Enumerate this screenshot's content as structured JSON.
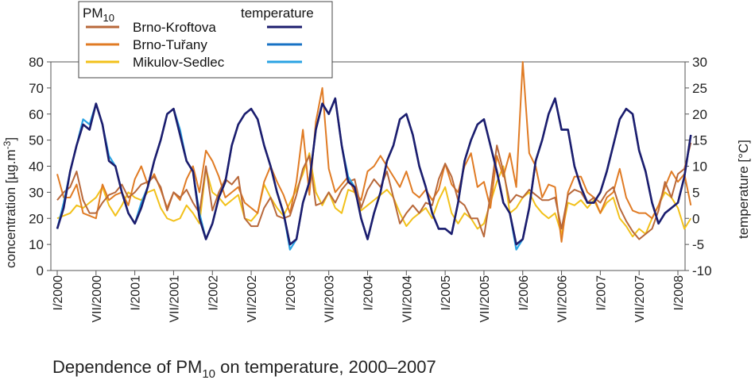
{
  "chart_data": {
    "type": "line",
    "title": "Dependence of PM10 on temperature, 2000–2007",
    "title_main": "Dependence of PM",
    "title_sub": "10",
    "title_rest": " on temperature, 2000–2007",
    "ylabel_left": "concentration [µg.m-3]",
    "ylabel_left_main": "concentration [µg.m",
    "ylabel_left_sup": "-3",
    "ylabel_left_end": "]",
    "ylabel_right": "temperature [°C]",
    "ylim_left": [
      0,
      80
    ],
    "ylim_right": [
      -10,
      30
    ],
    "yticks_left": [
      "0",
      "10",
      "20",
      "30",
      "40",
      "50",
      "60",
      "70",
      "80"
    ],
    "yticks_right": [
      "-10",
      "-5",
      "0",
      "5",
      "10",
      "15",
      "20",
      "25",
      "30"
    ],
    "xticks": [
      "I/2000",
      "VII/2000",
      "I/2001",
      "VII/2001",
      "I/2002",
      "VII/2002",
      "I/2003",
      "VII/2003",
      "I/2004",
      "VII/2004",
      "I/2005",
      "VII/2005",
      "I/2006",
      "VII/2006",
      "I/2007",
      "VII/2007",
      "I/2008"
    ],
    "legend": {
      "pm_header_main": "PM",
      "pm_header_sub": "10",
      "temp_header": "temperature",
      "stations": [
        "Brno-Kroftova",
        "Brno-Tuřany",
        "Mikulov-Sedlec"
      ]
    },
    "x": [
      "2000-01",
      "2000-02",
      "2000-03",
      "2000-04",
      "2000-05",
      "2000-06",
      "2000-07",
      "2000-08",
      "2000-09",
      "2000-10",
      "2000-11",
      "2000-12",
      "2001-01",
      "2001-02",
      "2001-03",
      "2001-04",
      "2001-05",
      "2001-06",
      "2001-07",
      "2001-08",
      "2001-09",
      "2001-10",
      "2001-11",
      "2001-12",
      "2002-01",
      "2002-02",
      "2002-03",
      "2002-04",
      "2002-05",
      "2002-06",
      "2002-07",
      "2002-08",
      "2002-09",
      "2002-10",
      "2002-11",
      "2002-12",
      "2003-01",
      "2003-02",
      "2003-03",
      "2003-04",
      "2003-05",
      "2003-06",
      "2003-07",
      "2003-08",
      "2003-09",
      "2003-10",
      "2003-11",
      "2003-12",
      "2004-01",
      "2004-02",
      "2004-03",
      "2004-04",
      "2004-05",
      "2004-06",
      "2004-07",
      "2004-08",
      "2004-09",
      "2004-10",
      "2004-11",
      "2004-12",
      "2005-01",
      "2005-02",
      "2005-03",
      "2005-04",
      "2005-05",
      "2005-06",
      "2005-07",
      "2005-08",
      "2005-09",
      "2005-10",
      "2005-11",
      "2005-12",
      "2006-01",
      "2006-02",
      "2006-03",
      "2006-04",
      "2006-05",
      "2006-06",
      "2006-07",
      "2006-08",
      "2006-09",
      "2006-10",
      "2006-11",
      "2006-12",
      "2007-01",
      "2007-02",
      "2007-03",
      "2007-04",
      "2007-05",
      "2007-06",
      "2007-07",
      "2007-08",
      "2007-09",
      "2007-10",
      "2007-11",
      "2007-12",
      "2008-01",
      "2008-02",
      "2008-03"
    ],
    "series": [
      {
        "name": "Brno-Kroftova",
        "kind": "pm10",
        "axis": "left",
        "color": "#b8683a",
        "values": [
          27,
          30,
          32,
          38,
          27,
          22,
          22,
          26,
          29,
          30,
          33,
          28,
          30,
          33,
          34,
          36,
          32,
          23,
          30,
          28,
          31,
          26,
          22,
          40,
          23,
          30,
          35,
          33,
          36,
          20,
          17,
          17,
          24,
          28,
          21,
          20,
          21,
          29,
          39,
          44,
          25,
          26,
          30,
          26,
          31,
          34,
          35,
          24,
          31,
          35,
          32,
          38,
          28,
          18,
          22,
          25,
          22,
          26,
          25,
          35,
          41,
          36,
          27,
          25,
          20,
          20,
          13,
          29,
          48,
          38,
          26,
          29,
          28,
          31,
          29,
          27,
          27,
          28,
          16,
          29,
          31,
          30,
          26,
          28,
          26,
          30,
          32,
          24,
          19,
          15,
          12,
          14,
          16,
          23,
          34,
          28,
          37,
          39,
          49
        ]
      },
      {
        "name": "Brno-Tuřany",
        "kind": "pm10",
        "axis": "left",
        "color": "#e07b24",
        "values": [
          37,
          28,
          28,
          33,
          22,
          21,
          20,
          33,
          27,
          29,
          30,
          25,
          35,
          40,
          33,
          37,
          31,
          24,
          30,
          27,
          35,
          40,
          30,
          46,
          42,
          36,
          28,
          30,
          32,
          26,
          24,
          22,
          34,
          40,
          34,
          29,
          22,
          34,
          54,
          29,
          57,
          70,
          39,
          30,
          33,
          36,
          30,
          27,
          38,
          40,
          44,
          40,
          36,
          32,
          38,
          30,
          28,
          31,
          27,
          31,
          41,
          33,
          30,
          40,
          45,
          32,
          34,
          24,
          44,
          36,
          45,
          32,
          80,
          45,
          40,
          28,
          33,
          32,
          11,
          30,
          36,
          36,
          30,
          28,
          22,
          28,
          30,
          39,
          28,
          23,
          22,
          22,
          20,
          25,
          32,
          38,
          34,
          37,
          25
        ]
      },
      {
        "name": "Mikulov-Sedlec",
        "kind": "pm10",
        "axis": "left",
        "color": "#f2c11b",
        "values": [
          20,
          21,
          22,
          25,
          24,
          26,
          28,
          32,
          25,
          21,
          25,
          30,
          28,
          27,
          30,
          31,
          24,
          20,
          19,
          20,
          25,
          22,
          18,
          39,
          30,
          28,
          25,
          27,
          29,
          20,
          19,
          22,
          33,
          28,
          24,
          21,
          26,
          31,
          37,
          45,
          30,
          25,
          30,
          24,
          22,
          31,
          30,
          23,
          25,
          27,
          29,
          31,
          28,
          22,
          17,
          20,
          22,
          24,
          20,
          27,
          32,
          22,
          18,
          22,
          20,
          16,
          18,
          26,
          34,
          40,
          22,
          24,
          28,
          30,
          25,
          22,
          20,
          22,
          14,
          26,
          25,
          27,
          24,
          27,
          22,
          26,
          28,
          20,
          17,
          13,
          16,
          14,
          20,
          25,
          30,
          28,
          24,
          16,
          20
        ]
      },
      {
        "name": "Brno-Kroftova",
        "kind": "temperature",
        "axis": "right",
        "color": "#1c1d6e",
        "values": [
          -2,
          2,
          9,
          14,
          18,
          17,
          22,
          18,
          11,
          10,
          5,
          1,
          -1,
          2,
          6,
          11,
          15,
          20,
          21,
          16,
          11,
          9,
          0,
          -4,
          -1,
          4,
          7,
          14,
          18,
          20,
          21,
          19,
          14,
          10,
          5,
          1,
          -5,
          -4,
          3,
          7,
          17,
          22,
          20,
          23,
          14,
          7,
          6,
          0,
          -4,
          1,
          5,
          11,
          14,
          19,
          20,
          16,
          10,
          6,
          1,
          -2,
          -2,
          -3,
          3,
          11,
          15,
          18,
          19,
          14,
          9,
          3,
          1,
          -5,
          -4,
          2,
          11,
          15,
          20,
          23,
          17,
          17,
          10,
          6,
          3,
          3,
          5,
          9,
          14,
          19,
          21,
          20,
          13,
          9,
          3,
          -1,
          1,
          2,
          3,
          8,
          16
        ]
      },
      {
        "name": "Brno-Tuřany",
        "kind": "temperature",
        "axis": "right",
        "color": "#1872c4",
        "values": [
          -2,
          2,
          9,
          14,
          18,
          17,
          22,
          18,
          11,
          10,
          5,
          1,
          -1,
          2,
          6,
          11,
          15,
          20,
          21,
          16,
          11,
          9,
          0,
          -4,
          -1,
          4,
          7,
          14,
          18,
          20,
          21,
          19,
          14,
          10,
          5,
          1,
          -5,
          -4,
          3,
          7,
          17,
          22,
          20,
          23,
          14,
          7,
          6,
          0,
          -4,
          1,
          5,
          11,
          14,
          19,
          20,
          16,
          10,
          6,
          1,
          -2,
          -2,
          -3,
          3,
          11,
          15,
          18,
          19,
          14,
          9,
          3,
          1,
          -5,
          -4,
          2,
          11,
          15,
          20,
          23,
          17,
          17,
          10,
          6,
          3,
          3,
          5,
          9,
          14,
          19,
          21,
          20,
          13,
          9,
          3,
          -1,
          1,
          2,
          3,
          8,
          16
        ]
      },
      {
        "name": "Mikulov-Sedlec",
        "kind": "temperature",
        "axis": "right",
        "color": "#2aa3e3",
        "values": [
          -2,
          3,
          9,
          14,
          19,
          18,
          22,
          18,
          12,
          10,
          5,
          1,
          -1,
          3,
          6,
          11,
          15,
          20,
          21,
          17,
          11,
          9,
          1,
          -4,
          -1,
          4,
          7,
          14,
          18,
          20,
          21,
          19,
          14,
          10,
          5,
          1,
          -6,
          -4,
          3,
          7,
          17,
          22,
          20,
          23,
          14,
          8,
          6,
          0,
          -4,
          1,
          5,
          11,
          14,
          19,
          20,
          16,
          10,
          6,
          1,
          -2,
          -2,
          -3,
          3,
          11,
          15,
          18,
          19,
          14,
          9,
          3,
          1,
          -6,
          -4,
          2,
          11,
          15,
          20,
          23,
          17,
          17,
          10,
          6,
          3,
          3,
          5,
          9,
          14,
          19,
          21,
          20,
          13,
          9,
          3,
          -1,
          1,
          2,
          3,
          8,
          16
        ]
      }
    ]
  }
}
